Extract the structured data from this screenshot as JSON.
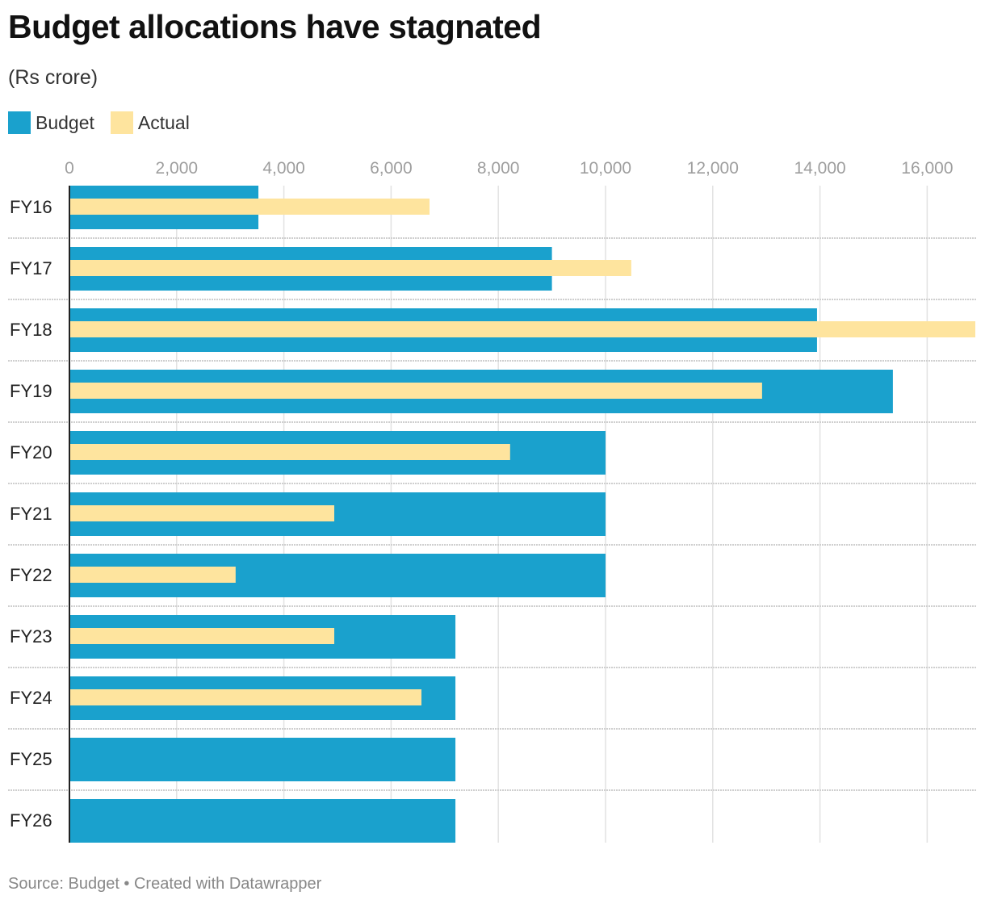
{
  "title": "Budget allocations have stagnated",
  "subtitle": "(Rs crore)",
  "source": "Source: Budget • Created with Datawrapper",
  "colors": {
    "budget": "#1aa1cd",
    "actual": "#fee49e"
  },
  "chart_data": {
    "type": "bar",
    "orientation": "horizontal",
    "title": "Budget allocations have stagnated",
    "subtitle": "(Rs crore)",
    "categories": [
      "FY16",
      "FY17",
      "FY18",
      "FY19",
      "FY20",
      "FY21",
      "FY22",
      "FY23",
      "FY24",
      "FY25",
      "FY26"
    ],
    "series": [
      {
        "name": "Budget",
        "values": [
          3525,
          9000,
          13945,
          15360,
          10000,
          10000,
          10000,
          7200,
          7200,
          7200,
          7200
        ]
      },
      {
        "name": "Actual",
        "values": [
          6717,
          10480,
          16900,
          12920,
          8220,
          4940,
          3100,
          4940,
          6566,
          null,
          null
        ]
      }
    ],
    "xlim": [
      0,
      16900
    ],
    "ticks": [
      0,
      2000,
      4000,
      6000,
      8000,
      10000,
      12000,
      14000,
      16000
    ],
    "tick_labels": [
      "0",
      "2,000",
      "4,000",
      "6,000",
      "8,000",
      "10,000",
      "12,000",
      "14,000",
      "16,000"
    ],
    "grid": true,
    "legend": "top-left"
  }
}
